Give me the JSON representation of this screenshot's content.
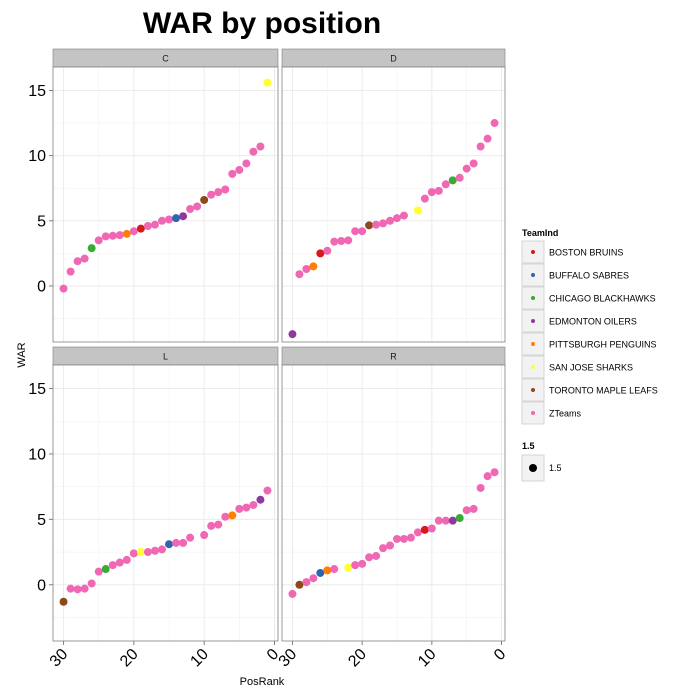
{
  "chart_data": {
    "type": "scatter",
    "title": "WAR by position",
    "xlabel": "PosRank",
    "ylabel": "WAR",
    "xlim": [
      31.5,
      -0.5
    ],
    "ylim": [
      -4.3,
      16.8
    ],
    "xticks": [
      30,
      20,
      10,
      0
    ],
    "yticks": [
      0,
      5,
      10,
      15
    ],
    "colors": {
      "BOSTON BRUINS": "#d7191c",
      "BUFFALO SABRES": "#2c66b0",
      "CHICAGO BLACKHAWKS": "#3aaa35",
      "EDMONTON OILERS": "#8e3a9c",
      "PITTSBURGH PENGUINS": "#ff7f00",
      "SAN JOSE SHARKS": "#ffff33",
      "TORONTO MAPLE LEAFS": "#8c4a1a",
      "ZTeams": "#f067b4"
    },
    "legend": {
      "title": "TeamInd",
      "entries": [
        "BOSTON BRUINS",
        "BUFFALO SABRES",
        "CHICAGO BLACKHAWKS",
        "EDMONTON OILERS",
        "PITTSBURGH PENGUINS",
        "SAN JOSE SHARKS",
        "TORONTO MAPLE LEAFS",
        "ZTeams"
      ],
      "size_title": "1.5",
      "size_label": "1.5"
    },
    "panels": [
      {
        "label": "C",
        "points": [
          {
            "x": 30,
            "y": -0.2,
            "team": "ZTeams"
          },
          {
            "x": 29,
            "y": 1.1,
            "team": "ZTeams"
          },
          {
            "x": 28,
            "y": 1.9,
            "team": "ZTeams"
          },
          {
            "x": 27,
            "y": 2.1,
            "team": "ZTeams"
          },
          {
            "x": 26,
            "y": 2.9,
            "team": "CHICAGO BLACKHAWKS"
          },
          {
            "x": 25,
            "y": 3.5,
            "team": "ZTeams"
          },
          {
            "x": 24,
            "y": 3.8,
            "team": "ZTeams"
          },
          {
            "x": 23,
            "y": 3.85,
            "team": "ZTeams"
          },
          {
            "x": 22,
            "y": 3.9,
            "team": "ZTeams"
          },
          {
            "x": 21,
            "y": 4.0,
            "team": "PITTSBURGH PENGUINS"
          },
          {
            "x": 20,
            "y": 4.2,
            "team": "ZTeams"
          },
          {
            "x": 19,
            "y": 4.4,
            "team": "BOSTON BRUINS"
          },
          {
            "x": 18,
            "y": 4.6,
            "team": "ZTeams"
          },
          {
            "x": 17,
            "y": 4.7,
            "team": "ZTeams"
          },
          {
            "x": 16,
            "y": 5.0,
            "team": "ZTeams"
          },
          {
            "x": 15,
            "y": 5.1,
            "team": "ZTeams"
          },
          {
            "x": 14,
            "y": 5.2,
            "team": "BUFFALO SABRES"
          },
          {
            "x": 13,
            "y": 5.35,
            "team": "EDMONTON OILERS"
          },
          {
            "x": 12,
            "y": 5.9,
            "team": "ZTeams"
          },
          {
            "x": 11,
            "y": 6.1,
            "team": "ZTeams"
          },
          {
            "x": 10,
            "y": 6.6,
            "team": "TORONTO MAPLE LEAFS"
          },
          {
            "x": 9,
            "y": 7.0,
            "team": "ZTeams"
          },
          {
            "x": 8,
            "y": 7.2,
            "team": "ZTeams"
          },
          {
            "x": 7,
            "y": 7.4,
            "team": "ZTeams"
          },
          {
            "x": 6,
            "y": 8.6,
            "team": "ZTeams"
          },
          {
            "x": 5,
            "y": 8.9,
            "team": "ZTeams"
          },
          {
            "x": 4,
            "y": 9.4,
            "team": "ZTeams"
          },
          {
            "x": 3,
            "y": 10.3,
            "team": "ZTeams"
          },
          {
            "x": 2,
            "y": 10.7,
            "team": "ZTeams"
          },
          {
            "x": 1,
            "y": 15.6,
            "team": "SAN JOSE SHARKS"
          }
        ]
      },
      {
        "label": "D",
        "points": [
          {
            "x": 30,
            "y": -3.7,
            "team": "EDMONTON OILERS"
          },
          {
            "x": 29,
            "y": 0.9,
            "team": "ZTeams"
          },
          {
            "x": 28,
            "y": 1.3,
            "team": "ZTeams"
          },
          {
            "x": 27,
            "y": 1.5,
            "team": "PITTSBURGH PENGUINS"
          },
          {
            "x": 26,
            "y": 2.5,
            "team": "BOSTON BRUINS"
          },
          {
            "x": 25,
            "y": 2.7,
            "team": "ZTeams"
          },
          {
            "x": 24,
            "y": 3.4,
            "team": "ZTeams"
          },
          {
            "x": 23,
            "y": 3.45,
            "team": "ZTeams"
          },
          {
            "x": 22,
            "y": 3.5,
            "team": "ZTeams"
          },
          {
            "x": 21,
            "y": 4.2,
            "team": "ZTeams"
          },
          {
            "x": 20,
            "y": 4.2,
            "team": "ZTeams"
          },
          {
            "x": 19,
            "y": 4.65,
            "team": "TORONTO MAPLE LEAFS"
          },
          {
            "x": 18,
            "y": 4.7,
            "team": "ZTeams"
          },
          {
            "x": 17,
            "y": 4.8,
            "team": "ZTeams"
          },
          {
            "x": 16,
            "y": 5.0,
            "team": "ZTeams"
          },
          {
            "x": 15,
            "y": 5.2,
            "team": "ZTeams"
          },
          {
            "x": 14,
            "y": 5.4,
            "team": "ZTeams"
          },
          {
            "x": 12,
            "y": 5.8,
            "team": "SAN JOSE SHARKS"
          },
          {
            "x": 11,
            "y": 6.7,
            "team": "ZTeams"
          },
          {
            "x": 10,
            "y": 7.2,
            "team": "ZTeams"
          },
          {
            "x": 9,
            "y": 7.3,
            "team": "ZTeams"
          },
          {
            "x": 8,
            "y": 7.8,
            "team": "ZTeams"
          },
          {
            "x": 7,
            "y": 8.1,
            "team": "CHICAGO BLACKHAWKS"
          },
          {
            "x": 6,
            "y": 8.3,
            "team": "ZTeams"
          },
          {
            "x": 5,
            "y": 9.0,
            "team": "ZTeams"
          },
          {
            "x": 4,
            "y": 9.4,
            "team": "ZTeams"
          },
          {
            "x": 3,
            "y": 10.7,
            "team": "ZTeams"
          },
          {
            "x": 2,
            "y": 11.3,
            "team": "ZTeams"
          },
          {
            "x": 1,
            "y": 12.5,
            "team": "ZTeams"
          }
        ]
      },
      {
        "label": "L",
        "points": [
          {
            "x": 30,
            "y": -1.3,
            "team": "TORONTO MAPLE LEAFS"
          },
          {
            "x": 29,
            "y": -0.3,
            "team": "ZTeams"
          },
          {
            "x": 28,
            "y": -0.35,
            "team": "ZTeams"
          },
          {
            "x": 27,
            "y": -0.3,
            "team": "ZTeams"
          },
          {
            "x": 26,
            "y": 0.1,
            "team": "ZTeams"
          },
          {
            "x": 25,
            "y": 1.0,
            "team": "ZTeams"
          },
          {
            "x": 24,
            "y": 1.2,
            "team": "CHICAGO BLACKHAWKS"
          },
          {
            "x": 23,
            "y": 1.5,
            "team": "ZTeams"
          },
          {
            "x": 22,
            "y": 1.7,
            "team": "ZTeams"
          },
          {
            "x": 21,
            "y": 1.9,
            "team": "ZTeams"
          },
          {
            "x": 20,
            "y": 2.4,
            "team": "ZTeams"
          },
          {
            "x": 19,
            "y": 2.5,
            "team": "SAN JOSE SHARKS"
          },
          {
            "x": 18,
            "y": 2.5,
            "team": "ZTeams"
          },
          {
            "x": 17,
            "y": 2.6,
            "team": "ZTeams"
          },
          {
            "x": 16,
            "y": 2.7,
            "team": "ZTeams"
          },
          {
            "x": 15,
            "y": 3.1,
            "team": "BUFFALO SABRES"
          },
          {
            "x": 14,
            "y": 3.2,
            "team": "ZTeams"
          },
          {
            "x": 13,
            "y": 3.2,
            "team": "ZTeams"
          },
          {
            "x": 12,
            "y": 3.6,
            "team": "ZTeams"
          },
          {
            "x": 10,
            "y": 3.8,
            "team": "ZTeams"
          },
          {
            "x": 9,
            "y": 4.5,
            "team": "ZTeams"
          },
          {
            "x": 8,
            "y": 4.6,
            "team": "ZTeams"
          },
          {
            "x": 7,
            "y": 5.2,
            "team": "ZTeams"
          },
          {
            "x": 6,
            "y": 5.3,
            "team": "PITTSBURGH PENGUINS"
          },
          {
            "x": 5,
            "y": 5.8,
            "team": "ZTeams"
          },
          {
            "x": 4,
            "y": 5.9,
            "team": "ZTeams"
          },
          {
            "x": 3,
            "y": 6.1,
            "team": "ZTeams"
          },
          {
            "x": 2,
            "y": 6.5,
            "team": "EDMONTON OILERS"
          },
          {
            "x": 1,
            "y": 7.2,
            "team": "ZTeams"
          }
        ]
      },
      {
        "label": "R",
        "points": [
          {
            "x": 30,
            "y": -0.7,
            "team": "ZTeams"
          },
          {
            "x": 29,
            "y": 0.0,
            "team": "TORONTO MAPLE LEAFS"
          },
          {
            "x": 28,
            "y": 0.2,
            "team": "ZTeams"
          },
          {
            "x": 27,
            "y": 0.5,
            "team": "ZTeams"
          },
          {
            "x": 26,
            "y": 0.9,
            "team": "BUFFALO SABRES"
          },
          {
            "x": 25,
            "y": 1.1,
            "team": "PITTSBURGH PENGUINS"
          },
          {
            "x": 24,
            "y": 1.2,
            "team": "ZTeams"
          },
          {
            "x": 22,
            "y": 1.3,
            "team": "SAN JOSE SHARKS"
          },
          {
            "x": 21,
            "y": 1.5,
            "team": "ZTeams"
          },
          {
            "x": 20,
            "y": 1.6,
            "team": "ZTeams"
          },
          {
            "x": 19,
            "y": 2.1,
            "team": "ZTeams"
          },
          {
            "x": 18,
            "y": 2.2,
            "team": "ZTeams"
          },
          {
            "x": 17,
            "y": 2.8,
            "team": "ZTeams"
          },
          {
            "x": 16,
            "y": 3.0,
            "team": "ZTeams"
          },
          {
            "x": 15,
            "y": 3.5,
            "team": "ZTeams"
          },
          {
            "x": 14,
            "y": 3.5,
            "team": "ZTeams"
          },
          {
            "x": 13,
            "y": 3.6,
            "team": "ZTeams"
          },
          {
            "x": 12,
            "y": 4.0,
            "team": "ZTeams"
          },
          {
            "x": 11,
            "y": 4.2,
            "team": "BOSTON BRUINS"
          },
          {
            "x": 10,
            "y": 4.3,
            "team": "ZTeams"
          },
          {
            "x": 9,
            "y": 4.9,
            "team": "ZTeams"
          },
          {
            "x": 8,
            "y": 4.9,
            "team": "ZTeams"
          },
          {
            "x": 7,
            "y": 4.9,
            "team": "EDMONTON OILERS"
          },
          {
            "x": 6,
            "y": 5.1,
            "team": "CHICAGO BLACKHAWKS"
          },
          {
            "x": 5,
            "y": 5.7,
            "team": "ZTeams"
          },
          {
            "x": 4,
            "y": 5.8,
            "team": "ZTeams"
          },
          {
            "x": 3,
            "y": 7.4,
            "team": "ZTeams"
          },
          {
            "x": 2,
            "y": 8.3,
            "team": "ZTeams"
          },
          {
            "x": 1,
            "y": 8.6,
            "team": "ZTeams"
          }
        ]
      }
    ]
  }
}
